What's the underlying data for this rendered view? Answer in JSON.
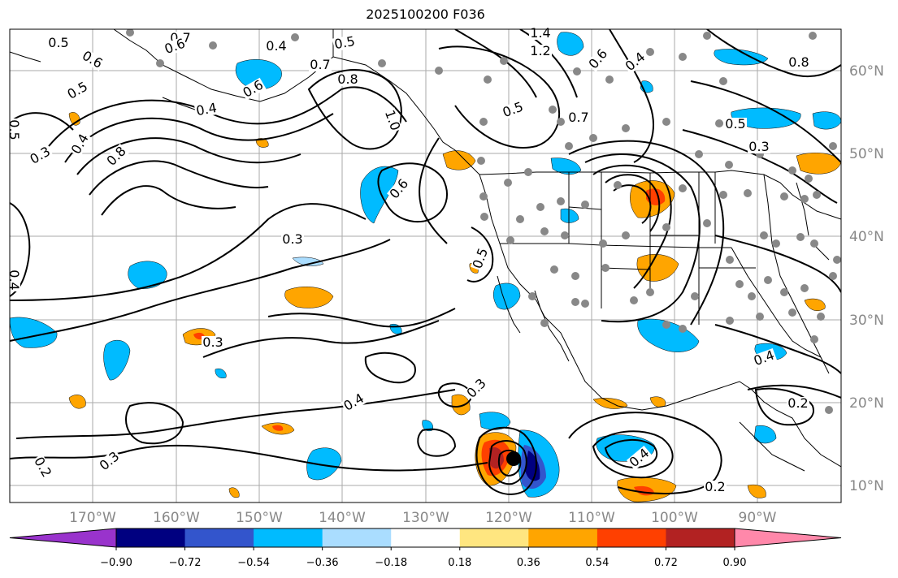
{
  "title": "2025100200 F036",
  "lat_labels": [
    "60°N",
    "50°N",
    "40°N",
    "30°N",
    "20°N",
    "10°N"
  ],
  "lon_labels": [
    "170°W",
    "160°W",
    "150°W",
    "140°W",
    "130°W",
    "120°W",
    "110°W",
    "100°W",
    "90°W"
  ],
  "colorbar": {
    "ticks": [
      "−0.90",
      "−0.72",
      "−0.54",
      "−0.36",
      "−0.18",
      "0.18",
      "0.36",
      "0.54",
      "0.72",
      "0.90"
    ],
    "colors": [
      "#9933cc",
      "#000080",
      "#3355cc",
      "#00bbff",
      "#aaddff",
      "#ffffff",
      "#ffe680",
      "#ffa500",
      "#ff4000",
      "#b22222",
      "#ff88aa"
    ]
  },
  "contour_labels": [
    {
      "text": "0.5"
    },
    {
      "text": "0.6"
    },
    {
      "text": "0.7"
    },
    {
      "text": "0.6"
    },
    {
      "text": "0.4"
    },
    {
      "text": "0.5"
    },
    {
      "text": "0.8"
    },
    {
      "text": "0.7"
    },
    {
      "text": "0.5"
    },
    {
      "text": "0.6"
    },
    {
      "text": "0.4"
    },
    {
      "text": "1.0"
    },
    {
      "text": "0.3"
    },
    {
      "text": "0.4"
    },
    {
      "text": "0.8"
    },
    {
      "text": "0.6"
    },
    {
      "text": "0.5"
    },
    {
      "text": "0.3"
    },
    {
      "text": "0.4"
    },
    {
      "text": "0.3"
    },
    {
      "text": "0.2"
    },
    {
      "text": "1.4"
    },
    {
      "text": "1.2"
    },
    {
      "text": "0.6"
    },
    {
      "text": "0.4"
    },
    {
      "text": "0.5"
    },
    {
      "text": "0.7"
    },
    {
      "text": "0.8"
    },
    {
      "text": "0.5"
    },
    {
      "text": "0.3"
    },
    {
      "text": "0.4"
    },
    {
      "text": "0.2"
    },
    {
      "text": "0.3"
    },
    {
      "text": "0.4"
    },
    {
      "text": "0.2"
    },
    {
      "text": "0.4"
    },
    {
      "text": "0.3"
    },
    {
      "text": "0.5"
    }
  ]
}
